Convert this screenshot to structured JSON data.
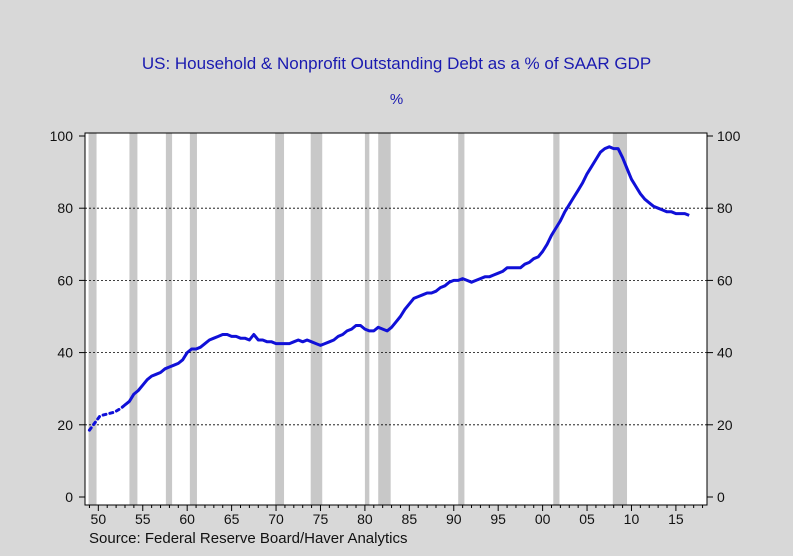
{
  "chart_data": {
    "type": "line",
    "title": "US: Household & Nonprofit Outstanding Debt as a % of SAAR GDP",
    "subtitle": "%",
    "source": "Source:    Federal  Reserve  Board/Haver  Analytics",
    "xlim": [
      1948.5,
      2018.5
    ],
    "ylim": [
      0,
      100
    ],
    "y_ticks": [
      0,
      20,
      40,
      60,
      80,
      100
    ],
    "y_tick_labels": [
      "0",
      "20",
      "40",
      "60",
      "80",
      "100"
    ],
    "gridlines_y": [
      20,
      40,
      60,
      80
    ],
    "x_tick_positions": [
      1950,
      1955,
      1960,
      1965,
      1970,
      1975,
      1980,
      1985,
      1990,
      1995,
      2000,
      2005,
      2010,
      2015
    ],
    "x_tick_labels": [
      "50",
      "55",
      "60",
      "65",
      "70",
      "75",
      "80",
      "85",
      "90",
      "95",
      "00",
      "05",
      "10",
      "15"
    ],
    "recessions": [
      [
        1948.9,
        1949.8
      ],
      [
        1953.5,
        1954.4
      ],
      [
        1957.6,
        1958.3
      ],
      [
        1960.3,
        1961.1
      ],
      [
        1969.9,
        1970.9
      ],
      [
        1973.9,
        1975.2
      ],
      [
        1980.0,
        1980.5
      ],
      [
        1981.5,
        1982.9
      ],
      [
        1990.5,
        1991.2
      ],
      [
        2001.2,
        2001.9
      ],
      [
        2007.9,
        2009.5
      ]
    ],
    "series": [
      {
        "color": "#1010d8",
        "x": [
          1949.0,
          1950.2,
          1951.0,
          1951.8,
          1952.5,
          1953.0,
          1953.5,
          1954.0,
          1954.5,
          1955.0,
          1955.5,
          1956.0,
          1956.5,
          1957.0,
          1957.5,
          1958.0,
          1958.5,
          1959.0,
          1959.5,
          1960.0,
          1960.5,
          1961.0,
          1961.5,
          1962.0,
          1962.5,
          1963.0,
          1963.5,
          1964.0,
          1964.5,
          1965.0,
          1965.5,
          1966.0,
          1966.5,
          1967.0,
          1967.5,
          1968.0,
          1968.5,
          1969.0,
          1969.5,
          1970.0,
          1970.5,
          1971.0,
          1971.5,
          1972.0,
          1972.5,
          1973.0,
          1973.5,
          1974.0,
          1974.5,
          1975.0,
          1975.5,
          1976.0,
          1976.5,
          1977.0,
          1977.5,
          1978.0,
          1978.5,
          1979.0,
          1979.5,
          1980.0,
          1980.5,
          1981.0,
          1981.5,
          1982.0,
          1982.5,
          1983.0,
          1983.5,
          1984.0,
          1984.5,
          1985.0,
          1985.5,
          1986.0,
          1986.5,
          1987.0,
          1987.5,
          1988.0,
          1988.5,
          1989.0,
          1989.5,
          1990.0,
          1990.5,
          1991.0,
          1991.5,
          1992.0,
          1992.5,
          1993.0,
          1993.5,
          1994.0,
          1994.5,
          1995.0,
          1995.5,
          1996.0,
          1996.5,
          1997.0,
          1997.5,
          1998.0,
          1998.5,
          1999.0,
          1999.5,
          2000.0,
          2000.5,
          2001.0,
          2001.5,
          2002.0,
          2002.5,
          2003.0,
          2003.5,
          2004.0,
          2004.5,
          2005.0,
          2005.5,
          2006.0,
          2006.5,
          2007.0,
          2007.5,
          2008.0,
          2008.5,
          2009.0,
          2009.5,
          2010.0,
          2010.5,
          2011.0,
          2011.5,
          2012.0,
          2012.5,
          2013.0,
          2013.5,
          2014.0,
          2014.5,
          2015.0,
          2015.5,
          2016.0,
          2016.5
        ],
        "values": [
          18.5,
          22.5,
          23.0,
          23.5,
          24.5,
          25.5,
          26.5,
          28.5,
          29.5,
          31.0,
          32.5,
          33.5,
          34.0,
          34.5,
          35.5,
          36.0,
          36.5,
          37.0,
          38.0,
          40.0,
          41.0,
          41.0,
          41.5,
          42.5,
          43.5,
          44.0,
          44.5,
          45.0,
          45.0,
          44.5,
          44.5,
          44.0,
          44.0,
          43.5,
          45.0,
          43.5,
          43.5,
          43.0,
          43.0,
          42.5,
          42.5,
          42.5,
          42.5,
          43.0,
          43.5,
          43.0,
          43.5,
          43.0,
          42.5,
          42.0,
          42.5,
          43.0,
          43.5,
          44.5,
          45.0,
          46.0,
          46.5,
          47.5,
          47.5,
          46.5,
          46.0,
          46.0,
          47.0,
          46.5,
          46.0,
          47.0,
          48.5,
          50.0,
          52.0,
          53.5,
          55.0,
          55.5,
          56.0,
          56.5,
          56.5,
          57.0,
          58.0,
          58.5,
          59.5,
          60.0,
          60.0,
          60.5,
          60.0,
          59.5,
          60.0,
          60.5,
          61.0,
          61.0,
          61.5,
          62.0,
          62.5,
          63.5,
          63.5,
          63.5,
          63.5,
          64.5,
          65.0,
          66.0,
          66.5,
          68.0,
          70.0,
          72.5,
          74.5,
          76.5,
          79.0,
          81.0,
          83.0,
          85.0,
          87.0,
          89.5,
          91.5,
          93.5,
          95.5,
          96.5,
          97.0,
          96.5,
          96.5,
          94.0,
          91.0,
          88.0,
          86.0,
          84.0,
          82.5,
          81.5,
          80.5,
          80.0,
          79.5,
          79.0,
          79.0,
          78.5,
          78.5,
          78.5,
          78.0
        ]
      }
    ],
    "grid": true,
    "legend": "none"
  }
}
